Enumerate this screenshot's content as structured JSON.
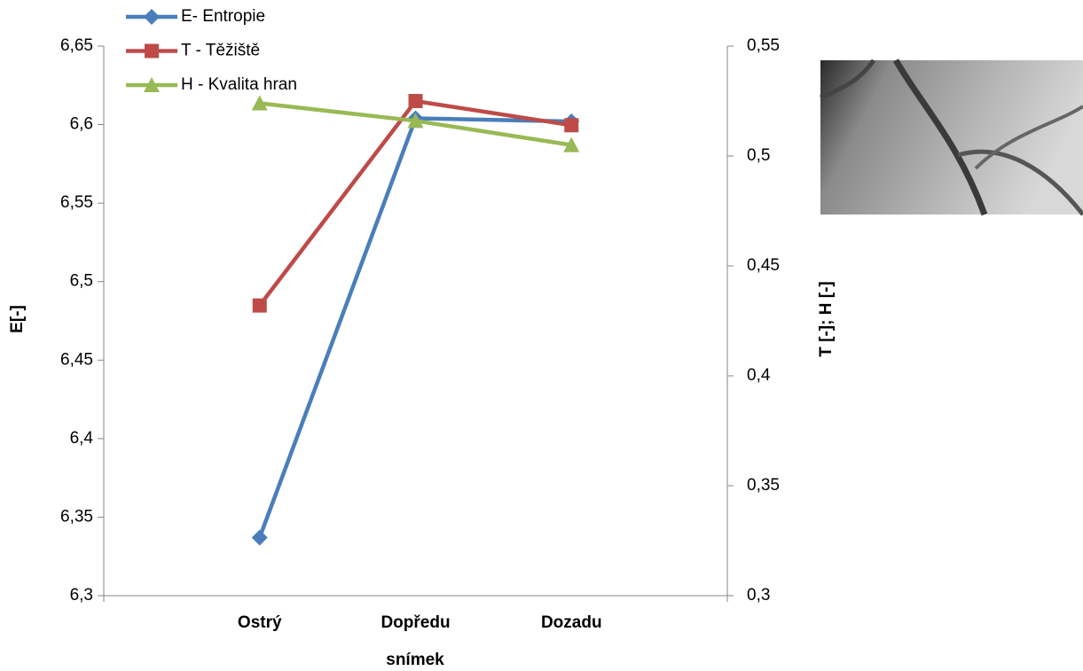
{
  "chart_data": {
    "type": "line",
    "categories": [
      "Ostrý",
      "Dopředu",
      "Dozadu"
    ],
    "x_label": "snímek",
    "y_label": "E[-]",
    "y2_label": "T [-]; H [-]",
    "ylim": [
      6.3,
      6.65
    ],
    "yticks": [
      {
        "value": 6.3,
        "label": "6,3"
      },
      {
        "value": 6.35,
        "label": "6,35"
      },
      {
        "value": 6.4,
        "label": "6,4"
      },
      {
        "value": 6.45,
        "label": "6,45"
      },
      {
        "value": 6.5,
        "label": "6,5"
      },
      {
        "value": 6.55,
        "label": "6,55"
      },
      {
        "value": 6.6,
        "label": "6,6"
      },
      {
        "value": 6.65,
        "label": "6,65"
      }
    ],
    "y2lim": [
      0.3,
      0.55
    ],
    "y2ticks": [
      {
        "value": 0.3,
        "label": "0,3"
      },
      {
        "value": 0.35,
        "label": "0,35"
      },
      {
        "value": 0.4,
        "label": "0,4"
      },
      {
        "value": 0.45,
        "label": "0,45"
      },
      {
        "value": 0.5,
        "label": "0,5"
      },
      {
        "value": 0.55,
        "label": "0,55"
      }
    ],
    "series": [
      {
        "name": "E- Entropie",
        "color": "#4a7ebb",
        "marker": "diamond",
        "axis": "y",
        "values": [
          6.337,
          6.604,
          6.602
        ]
      },
      {
        "name": "T - Těžiště",
        "color": "#be4b48",
        "marker": "square",
        "axis": "y2",
        "values": [
          0.432,
          0.525,
          0.514
        ]
      },
      {
        "name": "H - Kvalita hran",
        "color": "#98b954",
        "marker": "triangle",
        "axis": "y2",
        "values": [
          0.524,
          0.516,
          0.505
        ]
      }
    ]
  }
}
